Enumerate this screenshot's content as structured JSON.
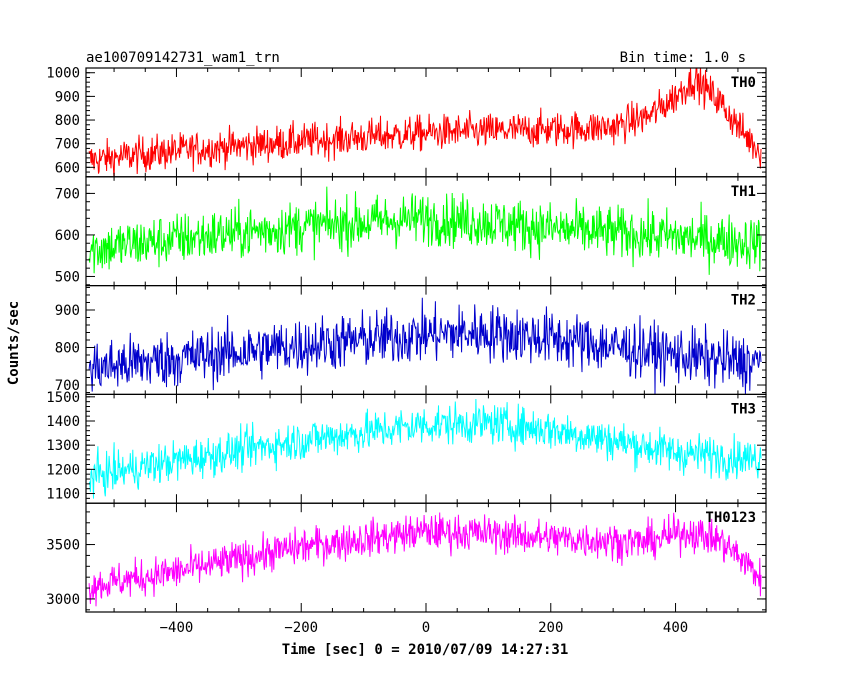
{
  "chart_data": {
    "type": "line",
    "title": "ae100709142731_wam1_trn",
    "bin_label": "Bin time: 1.0 s",
    "xlabel": "Time [sec] 0 = 2010/07/09 14:27:31",
    "ylabel": "Counts/sec",
    "xlim": [
      -545,
      545
    ],
    "xticks": [
      -400,
      -200,
      0,
      200,
      400
    ],
    "panels": [
      {
        "name": "TH0",
        "color": "#ff0000",
        "ylim": [
          560,
          1020
        ],
        "yticks": [
          600,
          700,
          800,
          900,
          1000
        ],
        "trend": [
          [
            -540,
            630
          ],
          [
            -400,
            670
          ],
          [
            -200,
            710
          ],
          [
            0,
            745
          ],
          [
            200,
            760
          ],
          [
            300,
            770
          ],
          [
            360,
            820
          ],
          [
            400,
            900
          ],
          [
            430,
            975
          ],
          [
            470,
            880
          ],
          [
            510,
            740
          ],
          [
            535,
            670
          ]
        ],
        "noise": 38
      },
      {
        "name": "TH1",
        "color": "#00ff00",
        "ylim": [
          478,
          740
        ],
        "yticks": [
          500,
          600,
          700
        ],
        "trend": [
          [
            -540,
            565
          ],
          [
            -400,
            590
          ],
          [
            -200,
            620
          ],
          [
            -50,
            635
          ],
          [
            0,
            640
          ],
          [
            100,
            630
          ],
          [
            200,
            615
          ],
          [
            400,
            595
          ],
          [
            540,
            580
          ]
        ],
        "noise": 32
      },
      {
        "name": "TH2",
        "color": "#0000cc",
        "ylim": [
          675,
          965
        ],
        "yticks": [
          700,
          800,
          900
        ],
        "trend": [
          [
            -540,
            745
          ],
          [
            -400,
            770
          ],
          [
            -200,
            805
          ],
          [
            0,
            835
          ],
          [
            100,
            840
          ],
          [
            200,
            825
          ],
          [
            400,
            780
          ],
          [
            540,
            755
          ]
        ],
        "noise": 38
      },
      {
        "name": "TH3",
        "color": "#00ffff",
        "ylim": [
          1060,
          1510
        ],
        "yticks": [
          1100,
          1200,
          1300,
          1400,
          1500
        ],
        "trend": [
          [
            -540,
            1170
          ],
          [
            -400,
            1235
          ],
          [
            -200,
            1320
          ],
          [
            0,
            1385
          ],
          [
            100,
            1390
          ],
          [
            200,
            1365
          ],
          [
            300,
            1320
          ],
          [
            400,
            1270
          ],
          [
            540,
            1240
          ]
        ],
        "noise": 42
      },
      {
        "name": "TH0123",
        "color": "#ff00ff",
        "ylim": [
          2880,
          3880
        ],
        "yticks": [
          3000,
          3500
        ],
        "trend": [
          [
            -540,
            3120
          ],
          [
            -400,
            3250
          ],
          [
            -200,
            3480
          ],
          [
            0,
            3620
          ],
          [
            100,
            3600
          ],
          [
            200,
            3560
          ],
          [
            350,
            3520
          ],
          [
            420,
            3620
          ],
          [
            470,
            3540
          ],
          [
            510,
            3350
          ],
          [
            535,
            3200
          ]
        ],
        "noise": 85
      }
    ]
  }
}
